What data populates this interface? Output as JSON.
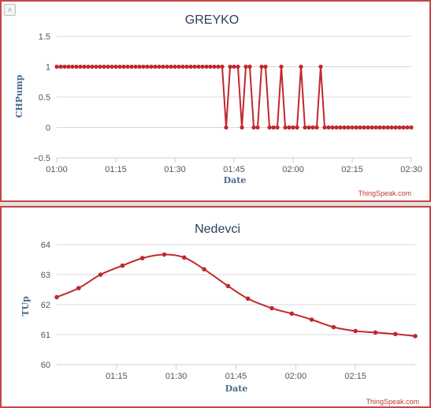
{
  "chart_data": [
    {
      "type": "line",
      "title": "GREYKO",
      "xlabel": "Date",
      "ylabel": "CHPump",
      "credit": "ThingSpeak.com",
      "xlim": [
        "01:00",
        "02:30"
      ],
      "ylim": [
        -0.5,
        1.5
      ],
      "y_ticks": [
        "1.5",
        "1",
        "0.5",
        "0",
        "−0.5"
      ],
      "y_tick_values": [
        1.5,
        1,
        0.5,
        0,
        -0.5
      ],
      "x_ticks": [
        "01:00",
        "01:15",
        "01:30",
        "01:45",
        "02:00",
        "02:15",
        "02:30"
      ],
      "x_tick_values": [
        0,
        15,
        30,
        45,
        60,
        75,
        90
      ],
      "x_minutes": [
        0,
        1,
        2,
        3,
        4,
        5,
        6,
        7,
        8,
        9,
        10,
        11,
        12,
        13,
        14,
        15,
        16,
        17,
        18,
        19,
        20,
        21,
        22,
        23,
        24,
        25,
        26,
        27,
        28,
        29,
        30,
        31,
        32,
        33,
        34,
        35,
        36,
        37,
        38,
        39,
        40,
        41,
        42,
        43,
        44,
        45,
        46,
        47,
        48,
        49,
        50,
        51,
        52,
        53,
        54,
        55,
        56,
        57,
        58,
        59,
        60,
        61,
        62,
        63,
        64,
        65,
        66,
        67,
        68,
        69,
        70,
        71,
        72,
        73,
        74,
        75,
        76,
        77,
        78,
        79,
        80,
        81,
        82,
        83,
        84,
        85,
        86,
        87,
        88,
        89,
        90
      ],
      "values": [
        1,
        1,
        1,
        1,
        1,
        1,
        1,
        1,
        1,
        1,
        1,
        1,
        1,
        1,
        1,
        1,
        1,
        1,
        1,
        1,
        1,
        1,
        1,
        1,
        1,
        1,
        1,
        1,
        1,
        1,
        1,
        1,
        1,
        1,
        1,
        1,
        1,
        1,
        1,
        1,
        1,
        1,
        1,
        0,
        1,
        1,
        1,
        0,
        1,
        1,
        0,
        0,
        1,
        1,
        0,
        0,
        0,
        1,
        0,
        0,
        0,
        0,
        1,
        0,
        0,
        0,
        0,
        1,
        0,
        0,
        0,
        0,
        0,
        0,
        0,
        0,
        0,
        0,
        0,
        0,
        0,
        0,
        0,
        0,
        0,
        0,
        0,
        0,
        0,
        0,
        0
      ]
    },
    {
      "type": "line",
      "title": "Nedevci",
      "xlabel": "Date",
      "ylabel": "TUp",
      "credit": "ThingSpeak.com",
      "xlim": [
        "01:00",
        "02:30"
      ],
      "ylim": [
        60,
        64
      ],
      "y_ticks": [
        "64",
        "63",
        "62",
        "61",
        "60"
      ],
      "y_tick_values": [
        64,
        63,
        62,
        61,
        60
      ],
      "x_ticks": [
        "01:15",
        "01:30",
        "01:45",
        "02:00",
        "02:15"
      ],
      "x_tick_values": [
        15,
        30,
        45,
        60,
        75
      ],
      "x_minutes": [
        0,
        5.5,
        11,
        16.5,
        21.5,
        27,
        32,
        37,
        43,
        48,
        54,
        59,
        64,
        69.5,
        75,
        80,
        85,
        90
      ],
      "values": [
        62.25,
        62.55,
        63.0,
        63.3,
        63.55,
        63.67,
        63.57,
        63.18,
        62.62,
        62.2,
        61.88,
        61.7,
        61.5,
        61.25,
        61.12,
        61.07,
        61.02,
        60.95
      ]
    }
  ]
}
